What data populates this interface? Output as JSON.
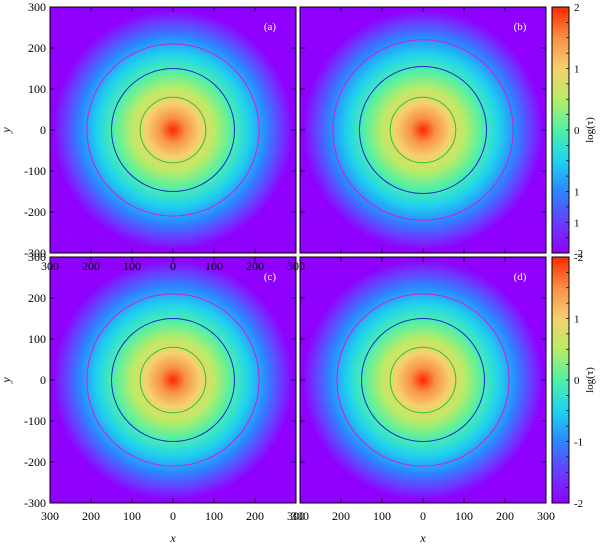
{
  "chart_data": [
    {
      "type": "heatmap",
      "panel_label": "(a)",
      "x_ticks": [
        "300",
        "200",
        "100",
        "0",
        "100",
        "200",
        "300"
      ],
      "y_ticks": [
        "300",
        "200",
        "100",
        "0",
        "-100",
        "-200",
        "-300"
      ],
      "xlabel": "",
      "ylabel": "y",
      "xlim": [
        -300,
        300
      ],
      "ylim": [
        -300,
        300
      ],
      "field": "log(τ) radially symmetric, peak ≈ 2 at (0,0)",
      "contours": [
        {
          "radius": 80,
          "color": "#22cc22"
        },
        {
          "radius": 150,
          "color": "#2222cc"
        },
        {
          "radius": 210,
          "color": "#cc22cc"
        }
      ]
    },
    {
      "type": "heatmap",
      "panel_label": "(b)",
      "x_ticks": [],
      "y_ticks": [],
      "xlabel": "",
      "ylabel": "",
      "xlim": [
        -300,
        300
      ],
      "ylim": [
        -300,
        300
      ],
      "contours": [
        {
          "radius": 80,
          "color": "#22cc22"
        },
        {
          "radius": 155,
          "color": "#2222cc"
        },
        {
          "radius": 220,
          "color": "#cc22cc"
        }
      ]
    },
    {
      "type": "heatmap",
      "panel_label": "(c)",
      "x_ticks": [
        "300",
        "200",
        "100",
        "0",
        "100",
        "200",
        "300"
      ],
      "y_ticks": [
        "300",
        "200",
        "100",
        "0",
        "-100",
        "-200",
        "-300"
      ],
      "xlabel": "x",
      "ylabel": "y",
      "xlim": [
        -300,
        300
      ],
      "ylim": [
        -300,
        300
      ],
      "contours": [
        {
          "radius": 80,
          "color": "#22cc22"
        },
        {
          "radius": 150,
          "color": "#2222cc"
        },
        {
          "radius": 210,
          "color": "#cc22cc"
        }
      ]
    },
    {
      "type": "heatmap",
      "panel_label": "(d)",
      "x_ticks": [
        "300",
        "200",
        "100",
        "0",
        "100",
        "200",
        "300"
      ],
      "y_ticks": [],
      "xlabel": "x",
      "ylabel": "",
      "xlim": [
        -300,
        300
      ],
      "ylim": [
        -300,
        300
      ],
      "contours": [
        {
          "radius": 80,
          "color": "#22cc22"
        },
        {
          "radius": 150,
          "color": "#2222cc"
        },
        {
          "radius": 210,
          "color": "#cc22cc"
        }
      ]
    }
  ],
  "colorbars": [
    {
      "label": "log(τ)",
      "ticks": [
        "2",
        "1",
        "0",
        "1",
        "1",
        "-2"
      ],
      "range": [
        -2,
        2
      ]
    },
    {
      "label": "log(τ)",
      "ticks": [
        "-2",
        "1",
        "0",
        "-1",
        "-2"
      ],
      "range": [
        -2,
        2
      ]
    }
  ],
  "colors": {
    "scale": [
      "#8f00ff",
      "#6a3cff",
      "#2c86ff",
      "#1fd2ee",
      "#4ff0a8",
      "#b8ec66",
      "#f6d070",
      "#f89048",
      "#ff2800"
    ],
    "frame": "#000000"
  }
}
